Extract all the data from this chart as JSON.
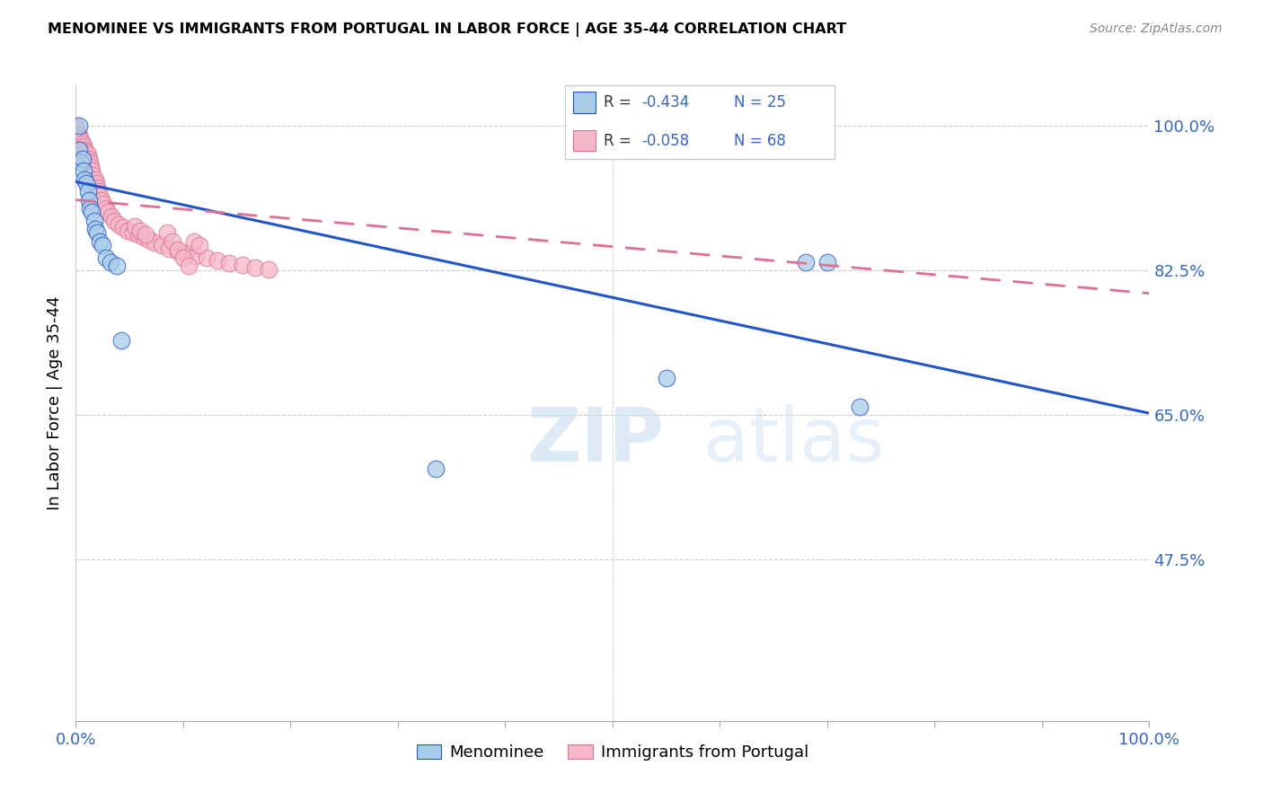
{
  "title": "MENOMINEE VS IMMIGRANTS FROM PORTUGAL IN LABOR FORCE | AGE 35-44 CORRELATION CHART",
  "source": "Source: ZipAtlas.com",
  "ylabel": "In Labor Force | Age 35-44",
  "ytick_labels": [
    "100.0%",
    "82.5%",
    "65.0%",
    "47.5%"
  ],
  "ytick_values": [
    1.0,
    0.825,
    0.65,
    0.475
  ],
  "xlim": [
    0.0,
    1.0
  ],
  "ylim": [
    0.28,
    1.05
  ],
  "color_blue": "#a8cce8",
  "color_pink": "#f4b8c8",
  "line_blue": "#2255cc",
  "line_pink": "#e07090",
  "watermark_zip": "ZIP",
  "watermark_atlas": "atlas",
  "menominee_x": [
    0.003,
    0.003,
    0.005,
    0.006,
    0.007,
    0.008,
    0.01,
    0.011,
    0.012,
    0.013,
    0.015,
    0.017,
    0.018,
    0.02,
    0.022,
    0.025,
    0.028,
    0.032,
    0.038,
    0.042,
    0.55,
    0.68,
    0.7,
    0.73,
    0.335
  ],
  "menominee_y": [
    1.0,
    0.97,
    0.955,
    0.96,
    0.945,
    0.935,
    0.93,
    0.92,
    0.91,
    0.9,
    0.895,
    0.885,
    0.875,
    0.87,
    0.86,
    0.855,
    0.84,
    0.835,
    0.83,
    0.74,
    0.695,
    0.835,
    0.835,
    0.66,
    0.585
  ],
  "portugal_x": [
    0.0,
    0.0,
    0.0,
    0.001,
    0.001,
    0.001,
    0.002,
    0.002,
    0.003,
    0.003,
    0.004,
    0.004,
    0.005,
    0.005,
    0.006,
    0.006,
    0.007,
    0.007,
    0.008,
    0.009,
    0.01,
    0.01,
    0.011,
    0.012,
    0.013,
    0.014,
    0.015,
    0.016,
    0.018,
    0.019,
    0.02,
    0.021,
    0.022,
    0.024,
    0.026,
    0.028,
    0.03,
    0.033,
    0.036,
    0.04,
    0.044,
    0.048,
    0.053,
    0.058,
    0.063,
    0.068,
    0.073,
    0.08,
    0.087,
    0.095,
    0.103,
    0.112,
    0.122,
    0.132,
    0.143,
    0.155,
    0.167,
    0.18,
    0.085,
    0.09,
    0.095,
    0.1,
    0.105,
    0.11,
    0.115,
    0.055,
    0.06,
    0.065
  ],
  "portugal_y": [
    1.0,
    0.99,
    0.98,
    0.995,
    0.985,
    0.975,
    0.99,
    0.98,
    0.988,
    0.978,
    0.985,
    0.975,
    0.982,
    0.972,
    0.978,
    0.968,
    0.975,
    0.965,
    0.97,
    0.962,
    0.968,
    0.958,
    0.965,
    0.96,
    0.955,
    0.95,
    0.945,
    0.94,
    0.935,
    0.93,
    0.925,
    0.92,
    0.915,
    0.91,
    0.905,
    0.9,
    0.895,
    0.89,
    0.885,
    0.88,
    0.877,
    0.873,
    0.87,
    0.868,
    0.865,
    0.862,
    0.858,
    0.855,
    0.851,
    0.848,
    0.845,
    0.842,
    0.84,
    0.837,
    0.834,
    0.831,
    0.828,
    0.826,
    0.87,
    0.86,
    0.85,
    0.84,
    0.83,
    0.86,
    0.855,
    0.878,
    0.873,
    0.868
  ],
  "men_line_x0": 0.0,
  "men_line_y0": 0.932,
  "men_line_x1": 1.0,
  "men_line_y1": 0.652,
  "port_line_x0": 0.0,
  "port_line_y0": 0.91,
  "port_line_x1": 1.0,
  "port_line_y1": 0.797
}
